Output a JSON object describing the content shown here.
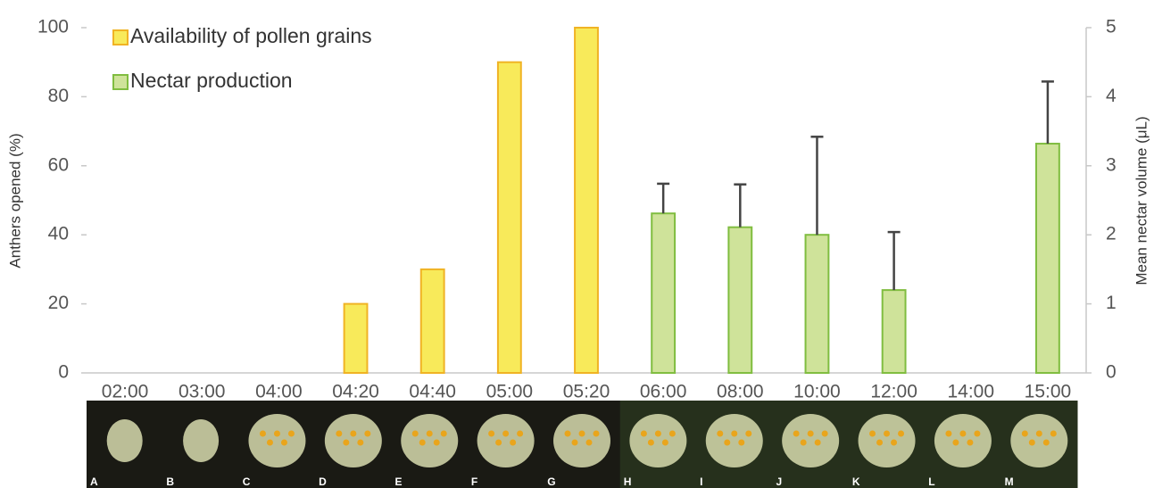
{
  "chart_data": {
    "type": "bar",
    "ylabel": "Anthers opened (%)",
    "y2label": "Mean nectar volume (μL)",
    "categories": [
      "02:00",
      "03:00",
      "04:00",
      "04:20",
      "04:40",
      "05:00",
      "05:20",
      "06:00",
      "08:00",
      "10:00",
      "12:00",
      "14:00",
      "15:00"
    ],
    "series": [
      {
        "name": "Availability of pollen grains",
        "color": "#f8ea5a",
        "edge": "#f0b324",
        "values": [
          null,
          null,
          null,
          20,
          30,
          90,
          100,
          null,
          null,
          null,
          null,
          null,
          null
        ]
      },
      {
        "name": "Nectar production",
        "color": "#cfe39a",
        "edge": "#80bd40",
        "axis": "y2",
        "values": [
          null,
          null,
          null,
          null,
          null,
          null,
          null,
          2.31,
          2.11,
          2.0,
          1.2,
          null,
          3.32
        ],
        "errors": [
          null,
          null,
          null,
          null,
          null,
          null,
          null,
          0.43,
          0.62,
          1.42,
          0.84,
          null,
          0.9
        ]
      }
    ],
    "ylim": [
      0,
      100
    ],
    "yticks": [
      0,
      20,
      40,
      60,
      80,
      100
    ],
    "y2lim": [
      0,
      5
    ],
    "y2ticks": [
      0,
      1,
      2,
      3,
      4,
      5
    ],
    "legend": "top-left",
    "photos": [
      "A",
      "B",
      "C",
      "D",
      "E",
      "F",
      "G",
      "H",
      "I",
      "J",
      "K",
      "L",
      "M"
    ]
  }
}
